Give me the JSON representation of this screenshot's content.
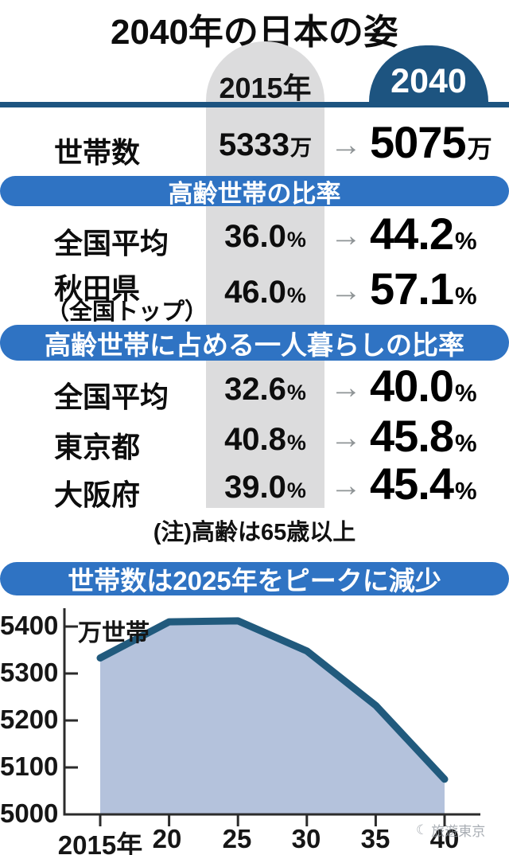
{
  "title": "2040年の日本の姿",
  "columns": {
    "before": "2015年",
    "after": "2040"
  },
  "ui": {
    "arrow": "→"
  },
  "households": {
    "label": "世帯数",
    "before": "5333",
    "before_unit": "万",
    "after": "5075",
    "after_unit": "万"
  },
  "sections": [
    {
      "header": "高齢世帯の比率",
      "rows": [
        {
          "label": "全国平均",
          "before": "36.0",
          "after": "44.2",
          "unit": "%"
        },
        {
          "label": "秋田県",
          "sublabel": "（全国トップ）",
          "before": "46.0",
          "after": "57.1",
          "unit": "%"
        }
      ]
    },
    {
      "header": "高齢世帯に占める一人暮らしの比率",
      "rows": [
        {
          "label": "全国平均",
          "before": "32.6",
          "after": "40.0",
          "unit": "%"
        },
        {
          "label": "東京都",
          "before": "40.8",
          "after": "45.8",
          "unit": "%"
        },
        {
          "label": "大阪府",
          "before": "39.0",
          "after": "45.4",
          "unit": "%"
        }
      ]
    }
  ],
  "note": "(注)高齢は65歳以上",
  "watermark": {
    "text": "旅遊東京"
  },
  "colors": {
    "navy": "#1d5480",
    "header_blue": "#2f73c3",
    "gray_band": "#dcdcdd",
    "arrow_gray": "#8f9496"
  },
  "chart_data": {
    "type": "area",
    "title": "世帯数は2025年をピークに減少",
    "ylabel": "万世帯",
    "x": [
      2015,
      2020,
      2025,
      2030,
      2035,
      2040
    ],
    "values": [
      5333,
      5410,
      5412,
      5348,
      5232,
      5075
    ],
    "x_tick_labels": [
      "2015年",
      "20",
      "25",
      "30",
      "35",
      "40"
    ],
    "y_tick_labels": [
      "5400",
      "5300",
      "5200",
      "5100",
      "5000"
    ],
    "y_ticks": [
      5400,
      5300,
      5200,
      5100,
      5000
    ],
    "ylim": [
      5000,
      5440
    ],
    "xlim": [
      2015,
      2040
    ],
    "grid": false,
    "legend": false,
    "line_color": "#215a7d",
    "fill_color": "#b4c2dc"
  }
}
